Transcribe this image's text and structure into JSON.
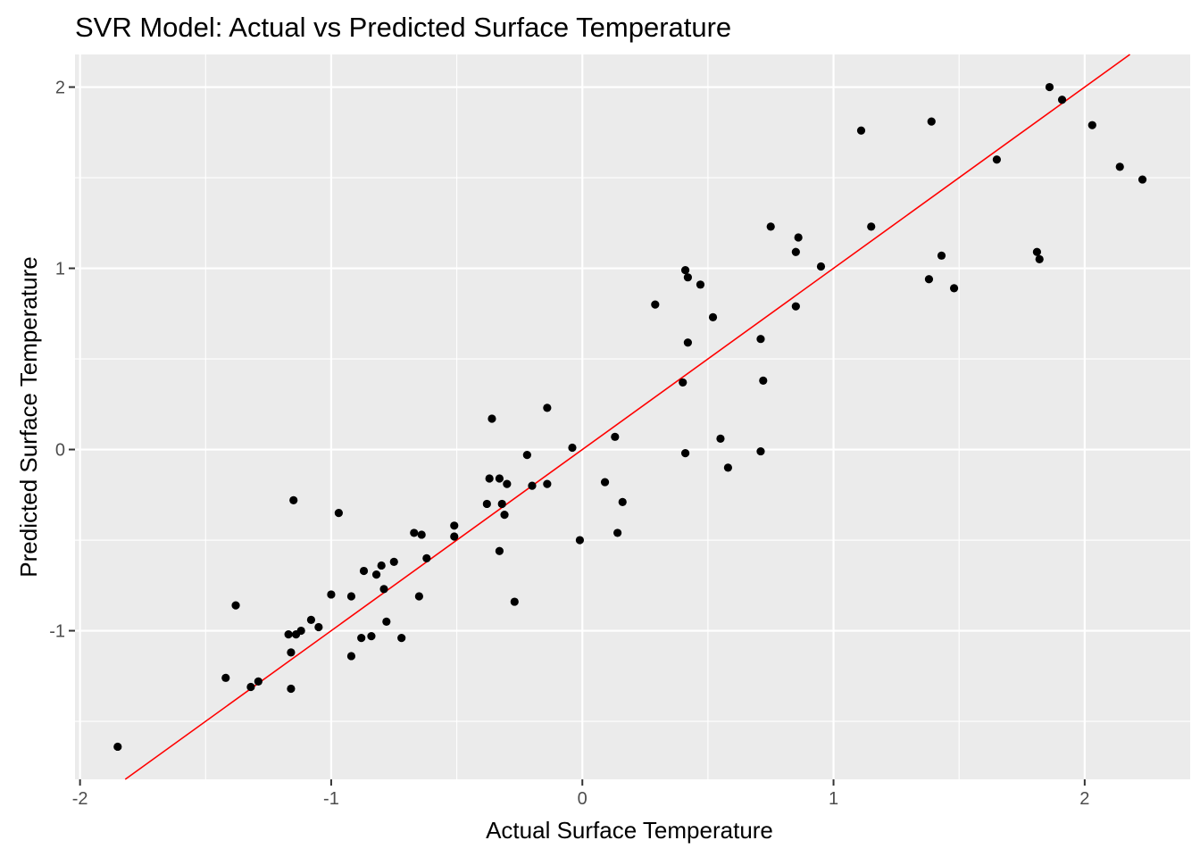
{
  "chart_data": {
    "type": "scatter",
    "title": "SVR Model: Actual vs Predicted Surface Temperature",
    "xlabel": "Actual Surface Temperature",
    "ylabel": "Predicted Surface Temperature",
    "xlim": [
      -2.02,
      2.42
    ],
    "ylim": [
      -1.82,
      2.18
    ],
    "x_ticks": [
      -2,
      -1,
      0,
      1,
      2
    ],
    "y_ticks": [
      -1,
      0,
      1,
      2
    ],
    "x_tick_labels": [
      "-2",
      "-1",
      "0",
      "1",
      "2"
    ],
    "y_tick_labels": [
      "-1",
      "0",
      "1",
      "2"
    ],
    "grid": true,
    "reference_line": {
      "type": "identity",
      "slope": 1,
      "intercept": 0,
      "color": "#ff0000"
    },
    "colors": {
      "panel_background": "#ebebeb",
      "grid": "#ffffff",
      "point": "#000000",
      "reference_line": "#ff0000"
    },
    "points": [
      {
        "x": -1.85,
        "y": -1.64
      },
      {
        "x": -1.42,
        "y": -1.26
      },
      {
        "x": -1.38,
        "y": -0.86
      },
      {
        "x": -1.32,
        "y": -1.31
      },
      {
        "x": -1.29,
        "y": -1.28
      },
      {
        "x": -1.17,
        "y": -1.02
      },
      {
        "x": -1.16,
        "y": -1.12
      },
      {
        "x": -1.16,
        "y": -1.32
      },
      {
        "x": -1.15,
        "y": -0.28
      },
      {
        "x": -1.14,
        "y": -1.02
      },
      {
        "x": -1.12,
        "y": -1.0
      },
      {
        "x": -1.08,
        "y": -0.94
      },
      {
        "x": -1.05,
        "y": -0.98
      },
      {
        "x": -1.0,
        "y": -0.8
      },
      {
        "x": -0.97,
        "y": -0.35
      },
      {
        "x": -0.92,
        "y": -0.81
      },
      {
        "x": -0.92,
        "y": -1.14
      },
      {
        "x": -0.88,
        "y": -1.04
      },
      {
        "x": -0.87,
        "y": -0.67
      },
      {
        "x": -0.84,
        "y": -1.03
      },
      {
        "x": -0.82,
        "y": -0.69
      },
      {
        "x": -0.8,
        "y": -0.64
      },
      {
        "x": -0.79,
        "y": -0.77
      },
      {
        "x": -0.78,
        "y": -0.95
      },
      {
        "x": -0.75,
        "y": -0.62
      },
      {
        "x": -0.72,
        "y": -1.04
      },
      {
        "x": -0.67,
        "y": -0.46
      },
      {
        "x": -0.65,
        "y": -0.81
      },
      {
        "x": -0.64,
        "y": -0.47
      },
      {
        "x": -0.62,
        "y": -0.6
      },
      {
        "x": -0.51,
        "y": -0.42
      },
      {
        "x": -0.51,
        "y": -0.48
      },
      {
        "x": -0.38,
        "y": -0.3
      },
      {
        "x": -0.37,
        "y": -0.16
      },
      {
        "x": -0.36,
        "y": 0.17
      },
      {
        "x": -0.33,
        "y": -0.16
      },
      {
        "x": -0.33,
        "y": -0.56
      },
      {
        "x": -0.32,
        "y": -0.3
      },
      {
        "x": -0.31,
        "y": -0.36
      },
      {
        "x": -0.3,
        "y": -0.19
      },
      {
        "x": -0.27,
        "y": -0.84
      },
      {
        "x": -0.22,
        "y": -0.03
      },
      {
        "x": -0.2,
        "y": -0.2
      },
      {
        "x": -0.14,
        "y": 0.23
      },
      {
        "x": -0.14,
        "y": -0.19
      },
      {
        "x": -0.04,
        "y": 0.01
      },
      {
        "x": -0.01,
        "y": -0.5
      },
      {
        "x": 0.09,
        "y": -0.18
      },
      {
        "x": 0.13,
        "y": 0.07
      },
      {
        "x": 0.14,
        "y": -0.46
      },
      {
        "x": 0.16,
        "y": -0.29
      },
      {
        "x": 0.29,
        "y": 0.8
      },
      {
        "x": 0.4,
        "y": 0.37
      },
      {
        "x": 0.41,
        "y": 0.99
      },
      {
        "x": 0.41,
        "y": -0.02
      },
      {
        "x": 0.42,
        "y": 0.95
      },
      {
        "x": 0.42,
        "y": 0.59
      },
      {
        "x": 0.47,
        "y": 0.91
      },
      {
        "x": 0.52,
        "y": 0.73
      },
      {
        "x": 0.55,
        "y": 0.06
      },
      {
        "x": 0.58,
        "y": -0.1
      },
      {
        "x": 0.71,
        "y": 0.61
      },
      {
        "x": 0.71,
        "y": -0.01
      },
      {
        "x": 0.72,
        "y": 0.38
      },
      {
        "x": 0.75,
        "y": 1.23
      },
      {
        "x": 0.85,
        "y": 1.09
      },
      {
        "x": 0.85,
        "y": 0.79
      },
      {
        "x": 0.86,
        "y": 1.17
      },
      {
        "x": 0.95,
        "y": 1.01
      },
      {
        "x": 1.11,
        "y": 1.76
      },
      {
        "x": 1.15,
        "y": 1.23
      },
      {
        "x": 1.38,
        "y": 0.94
      },
      {
        "x": 1.39,
        "y": 1.81
      },
      {
        "x": 1.43,
        "y": 1.07
      },
      {
        "x": 1.48,
        "y": 0.89
      },
      {
        "x": 1.65,
        "y": 1.6
      },
      {
        "x": 1.81,
        "y": 1.09
      },
      {
        "x": 1.82,
        "y": 1.05
      },
      {
        "x": 1.86,
        "y": 2.0
      },
      {
        "x": 1.91,
        "y": 1.93
      },
      {
        "x": 2.03,
        "y": 1.79
      },
      {
        "x": 2.14,
        "y": 1.56
      },
      {
        "x": 2.23,
        "y": 1.49
      }
    ]
  }
}
